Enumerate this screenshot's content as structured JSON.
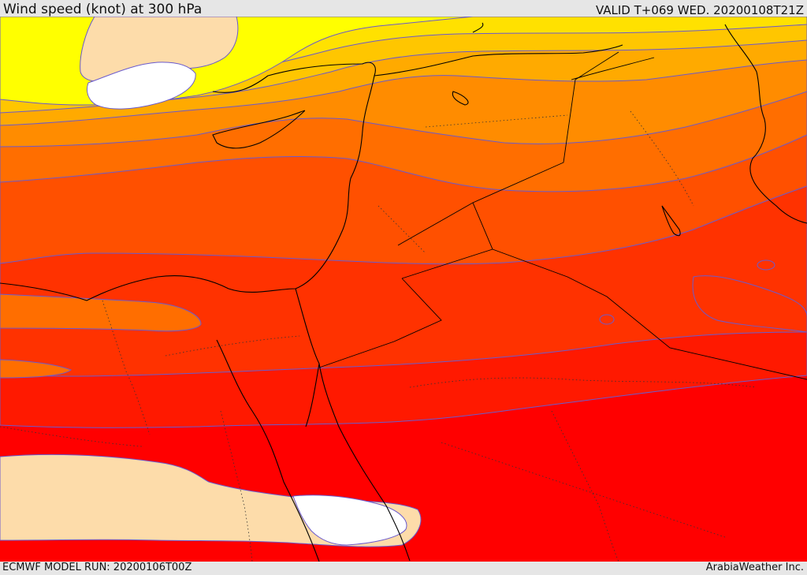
{
  "header": {
    "title": "Wind speed (knot) at 300 hPa",
    "valid": "VALID T+069 WED. 20200108T21Z"
  },
  "footer": {
    "model_run": "ECMWF MODEL RUN: 20200106T00Z",
    "credit": "ArabiaWeather Inc."
  },
  "map": {
    "variable": "wind speed",
    "level_hpa": 300,
    "units": "knot",
    "colors": {
      "white": "#ffffff",
      "wheat": "#fddcaa",
      "yellow": "#ffff00",
      "gold": "#ffe100",
      "light_orange": "#ffc600",
      "orange_1": "#ffaa00",
      "orange_2": "#ff8c00",
      "orange_3": "#ff6e00",
      "red_orange_1": "#ff5000",
      "red_orange_2": "#ff3200",
      "red_1": "#ff1900",
      "red_2": "#ff0000",
      "contour": "#6a5acd",
      "border": "#000000"
    }
  }
}
